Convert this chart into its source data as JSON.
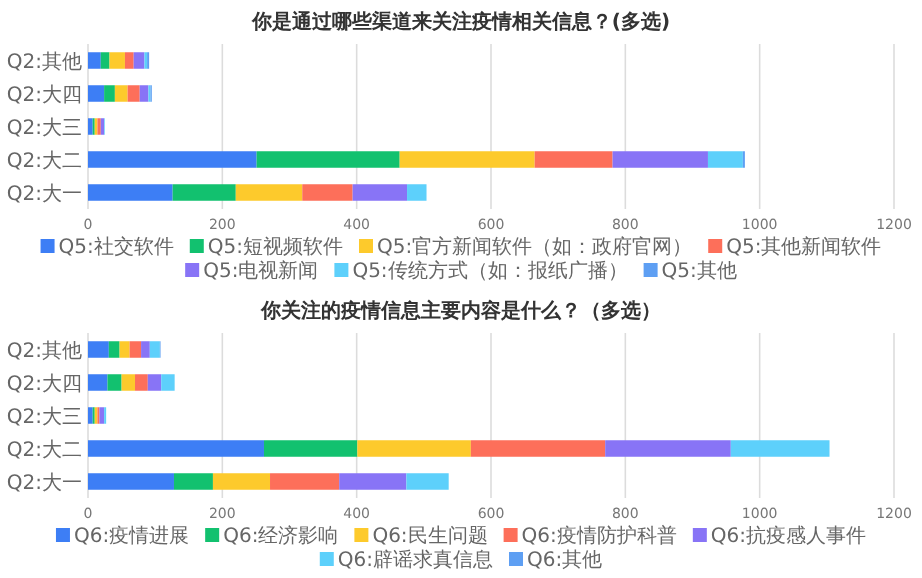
{
  "chart_data": [
    {
      "type": "bar",
      "title": "你是通过哪些渠道来关注疫情相关信息？(多选)",
      "orientation": "horizontal",
      "stacked": true,
      "grid": "x",
      "legend": "bottom",
      "categories": [
        "Q2:其他",
        "Q2:大四",
        "Q2:大三",
        "Q2:大二",
        "Q2:大一"
      ],
      "xlim": [
        0,
        1200
      ],
      "xticks": [
        0,
        200,
        400,
        600,
        800,
        1000,
        1200
      ],
      "series": [
        {
          "name": "Q5:社交软件",
          "color": "#3d7ef5",
          "values": [
            19,
            24,
            7,
            251,
            126
          ]
        },
        {
          "name": "Q5:短视频软件",
          "color": "#12c16f",
          "values": [
            13,
            16,
            3,
            213,
            94
          ]
        },
        {
          "name": "Q5:官方新闻软件（如：政府官网）",
          "color": "#fdca2c",
          "values": [
            23,
            19,
            4,
            201,
            99
          ]
        },
        {
          "name": "Q5:其他新闻软件",
          "color": "#fd6f5a",
          "values": [
            13,
            18,
            5,
            116,
            75
          ]
        },
        {
          "name": "Q5:电视新闻",
          "color": "#8874f6",
          "values": [
            16,
            13,
            5,
            142,
            81
          ]
        },
        {
          "name": "Q5:传统方式（如：报纸广播）",
          "color": "#5dd0fb",
          "values": [
            4,
            3,
            1,
            52,
            29
          ]
        },
        {
          "name": "Q5:其他",
          "color": "#5e9ff3",
          "values": [
            3,
            2,
            0,
            3,
            0
          ]
        }
      ]
    },
    {
      "type": "bar",
      "title": "你关注的疫情信息主要内容是什么？（多选）",
      "orientation": "horizontal",
      "stacked": true,
      "grid": "x",
      "legend": "bottom",
      "categories": [
        "Q2:其他",
        "Q2:大四",
        "Q2:大三",
        "Q2:大二",
        "Q2:大一"
      ],
      "xlim": [
        0,
        1200
      ],
      "xticks": [
        0,
        200,
        400,
        600,
        800,
        1000,
        1200
      ],
      "series": [
        {
          "name": "Q6:疫情进展",
          "color": "#3d7ef5",
          "values": [
            31,
            29,
            7,
            262,
            128
          ]
        },
        {
          "name": "Q6:经济影响",
          "color": "#12c16f",
          "values": [
            16,
            21,
            3,
            139,
            58
          ]
        },
        {
          "name": "Q6:民生问题",
          "color": "#fdca2c",
          "values": [
            15,
            20,
            4,
            169,
            85
          ]
        },
        {
          "name": "Q6:疫情防护科普",
          "color": "#fd6f5a",
          "values": [
            17,
            19,
            3,
            200,
            103
          ]
        },
        {
          "name": "Q6:抗疫感人事件",
          "color": "#8874f6",
          "values": [
            13,
            20,
            7,
            187,
            100
          ]
        },
        {
          "name": "Q6:辟谣求真信息",
          "color": "#5dd0fb",
          "values": [
            15,
            20,
            3,
            147,
            63
          ]
        },
        {
          "name": "Q6:其他",
          "color": "#5e9ff3",
          "values": [
            1,
            null,
            0,
            null,
            0
          ]
        }
      ]
    }
  ]
}
